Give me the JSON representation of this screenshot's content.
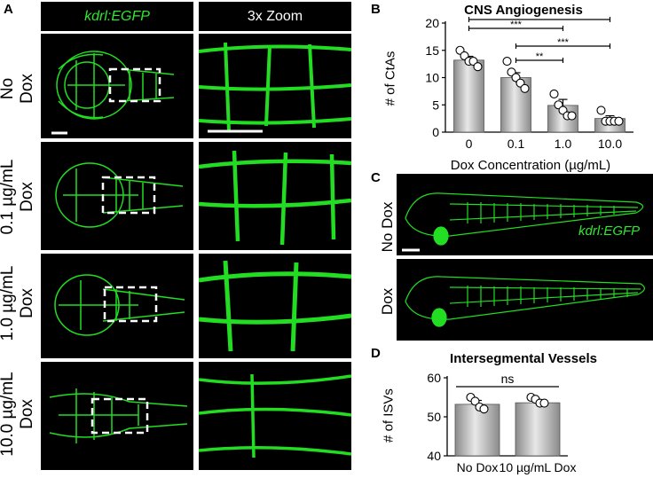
{
  "panel_a": {
    "letter": "A",
    "header_left": "kdrl:EGFP",
    "header_right": "3x Zoom",
    "rows": [
      {
        "label_1": "No",
        "label_2": "Dox"
      },
      {
        "label_1": "0.1 µg/mL",
        "label_2": "Dox"
      },
      {
        "label_1": "1.0 µg/mL",
        "label_2": "Dox"
      },
      {
        "label_1": "10.0 µg/mL",
        "label_2": "Dox"
      }
    ]
  },
  "panel_b": {
    "letter": "B"
  },
  "panel_c": {
    "letter": "C",
    "label_top": "No Dox",
    "label_bottom": "Dox",
    "overlay": "kdrl:EGFP"
  },
  "panel_d": {
    "letter": "D"
  },
  "chart_data": [
    {
      "type": "bar",
      "title": "CNS Angiogenesis",
      "xlabel": "Dox Concentration (µg/mL)",
      "ylabel": "# of CtAs",
      "categories": [
        "0",
        "0.1",
        "1.0",
        "10.0"
      ],
      "values": [
        13.2,
        10.0,
        4.9,
        2.5
      ],
      "errors": [
        0.7,
        0.9,
        1.1,
        0.5
      ],
      "points": [
        [
          15,
          14,
          13,
          13,
          12
        ],
        [
          13,
          11,
          10,
          9,
          8
        ],
        [
          7,
          5,
          4,
          3,
          3
        ],
        [
          4,
          2,
          2,
          2,
          2
        ]
      ],
      "ylim": [
        0,
        20
      ],
      "yticks": [
        0,
        5,
        10,
        15,
        20
      ],
      "significance": [
        {
          "from": 0,
          "to": 3,
          "label": "***"
        },
        {
          "from": 0,
          "to": 2,
          "label": "***"
        },
        {
          "from": 1,
          "to": 3,
          "label": "***"
        },
        {
          "from": 1,
          "to": 2,
          "label": "**"
        }
      ],
      "bar_color": "#a8a8a8"
    },
    {
      "type": "bar",
      "title": "Intersegmental Vessels",
      "xlabel": "",
      "ylabel": "# of ISVs",
      "categories": [
        "No Dox",
        "10 µg/mL Dox"
      ],
      "values": [
        53.2,
        53.6
      ],
      "errors": [
        1.0,
        0.8
      ],
      "points": [
        [
          55,
          54,
          52.5,
          52
        ],
        [
          55,
          54.5,
          53.5,
          53.5
        ]
      ],
      "ylim": [
        40,
        60
      ],
      "yticks": [
        40,
        50,
        60
      ],
      "significance": [
        {
          "from": 0,
          "to": 1,
          "label": "ns"
        }
      ],
      "bar_color": "#a8a8a8"
    }
  ],
  "colors": {
    "vessel_green": "#22dd22",
    "background": "#000000"
  }
}
